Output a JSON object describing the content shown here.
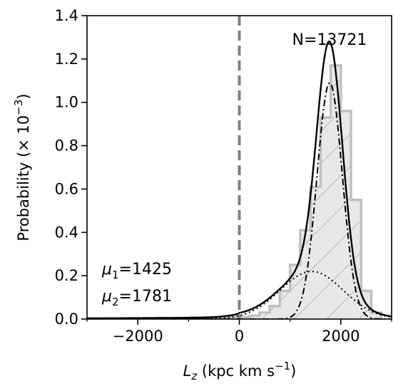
{
  "chart_data": {
    "type": "histogram",
    "xlabel": {
      "main": "L",
      "sub": "z",
      "units": " (kpc km s",
      "sup": "−1",
      "close": ")"
    },
    "ylabel": {
      "main": "Probability (× 10",
      "sup": "−3",
      "close": ")"
    },
    "xlim": [
      -3000,
      3000
    ],
    "ylim": [
      0,
      1.4
    ],
    "x_ticks": [
      -2000,
      0,
      2000
    ],
    "x_tick_labels": [
      "−2000",
      "0",
      "2000"
    ],
    "x_minor_ticks": [
      -3000,
      -1000,
      1000,
      3000
    ],
    "y_ticks": [
      0.0,
      0.2,
      0.4,
      0.6,
      0.8,
      1.0,
      1.2,
      1.4
    ],
    "y_tick_labels": [
      "0.0",
      "0.2",
      "0.4",
      "0.6",
      "0.8",
      "1.0",
      "1.2",
      "1.4"
    ],
    "vertical_line_x": 0,
    "annotation_count": "N=13721",
    "mu1": {
      "symbol": "μ",
      "sub": "1",
      "value": "=1425"
    },
    "mu2": {
      "symbol": "μ",
      "sub": "2",
      "value": "=1781"
    },
    "histogram": {
      "bin_edges": [
        -3000,
        -2800,
        -2600,
        -2400,
        -2200,
        -2000,
        -1800,
        -1600,
        -1400,
        -1200,
        -1000,
        -800,
        -600,
        -400,
        -200,
        0,
        200,
        400,
        600,
        800,
        1000,
        1200,
        1400,
        1600,
        1800,
        2000,
        2200,
        2400,
        2600,
        2800
      ],
      "values": [
        0.003,
        0.003,
        0.003,
        0.003,
        0.004,
        0.004,
        0.004,
        0.005,
        0.005,
        0.005,
        0.006,
        0.006,
        0.007,
        0.008,
        0.009,
        0.01,
        0.015,
        0.03,
        0.06,
        0.13,
        0.25,
        0.41,
        0.61,
        0.93,
        1.17,
        0.96,
        0.55,
        0.13,
        0.03
      ]
    },
    "components": {
      "mu1": 1425,
      "sigma1": 620,
      "amp1": 0.22,
      "mu2": 1781,
      "sigma2": 250,
      "amp2": 1.09
    },
    "colors": {
      "hist_fill": "#e8e8e8",
      "hist_edge": "#c0c0c0",
      "hatch": "#a8a8a8",
      "vline": "#808080",
      "curve": "#000000"
    }
  }
}
